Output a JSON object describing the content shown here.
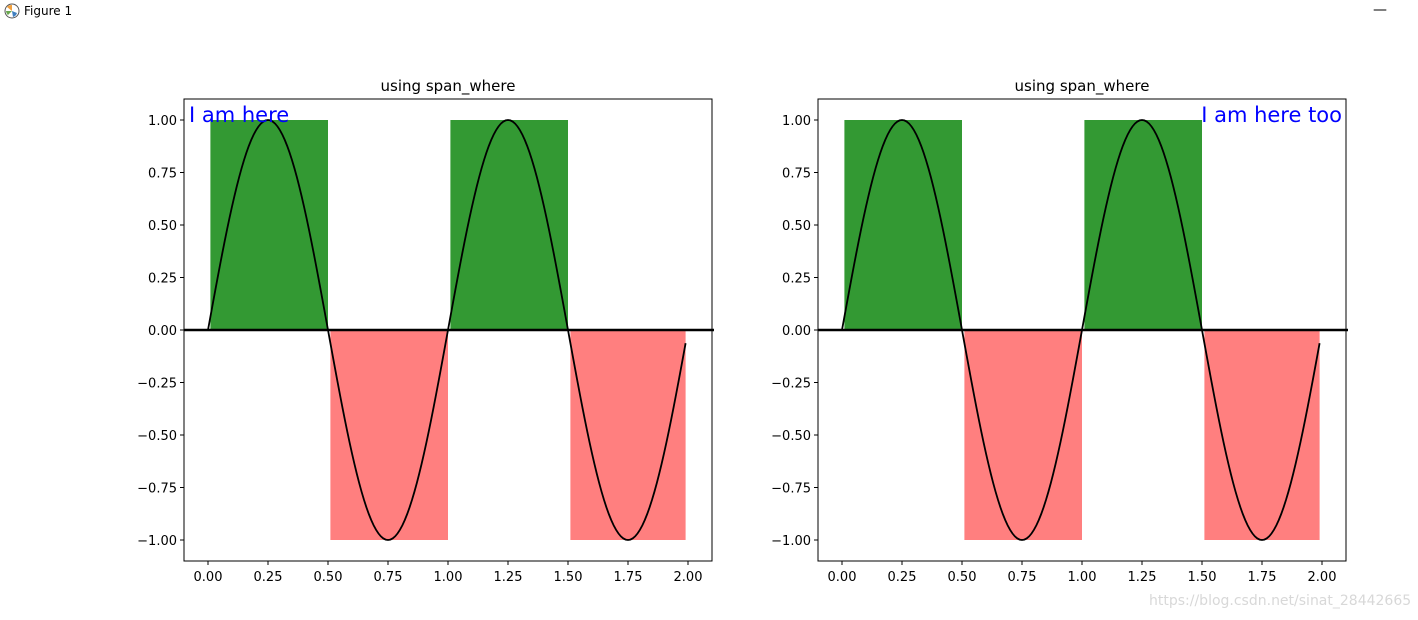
{
  "window": {
    "title": "Figure 1",
    "app_icon": "matplotlib-icon",
    "minimize_icon": "minimize-icon",
    "minimize_glyph": "—"
  },
  "watermark": "https://blog.csdn.net/sinat_28442665",
  "colors": {
    "positive_fill": "#339933",
    "negative_fill": "#ff7f7f",
    "curve": "#000000",
    "annotation": "#0000ff"
  },
  "chart_data": [
    {
      "type": "line",
      "title": "using span_where",
      "annotation": "I am here",
      "annotation_position": "top-left",
      "xlim": [
        -0.1,
        2.1
      ],
      "ylim": [
        -1.1,
        1.1
      ],
      "xticks": [
        "0.00",
        "0.25",
        "0.50",
        "0.75",
        "1.00",
        "1.25",
        "1.50",
        "1.75",
        "2.00"
      ],
      "yticks": [
        "1.00",
        "0.75",
        "0.50",
        "0.25",
        "0.00",
        "−0.25",
        "−0.50",
        "−0.75",
        "−1.00"
      ],
      "curve": {
        "function": "sin(2*pi*t)",
        "t_start": 0.0,
        "t_end": 1.99,
        "t_step": 0.01
      },
      "spans_positive": [
        [
          0.01,
          0.5
        ],
        [
          1.01,
          1.5
        ]
      ],
      "spans_negative": [
        [
          0.51,
          1.0
        ],
        [
          1.51,
          1.99
        ]
      ],
      "hline_y": 0
    },
    {
      "type": "line",
      "title": "using span_where",
      "annotation": "I am here too",
      "annotation_position": "top-right",
      "xlim": [
        -0.1,
        2.1
      ],
      "ylim": [
        -1.1,
        1.1
      ],
      "xticks": [
        "0.00",
        "0.25",
        "0.50",
        "0.75",
        "1.00",
        "1.25",
        "1.50",
        "1.75",
        "2.00"
      ],
      "yticks": [
        "1.00",
        "0.75",
        "0.50",
        "0.25",
        "0.00",
        "−0.25",
        "−0.50",
        "−0.75",
        "−1.00"
      ],
      "curve": {
        "function": "sin(2*pi*t)",
        "t_start": 0.0,
        "t_end": 1.99,
        "t_step": 0.01
      },
      "spans_positive": [
        [
          0.01,
          0.5
        ],
        [
          1.01,
          1.5
        ]
      ],
      "spans_negative": [
        [
          0.51,
          1.0
        ],
        [
          1.51,
          1.99
        ]
      ],
      "hline_y": 0
    }
  ]
}
